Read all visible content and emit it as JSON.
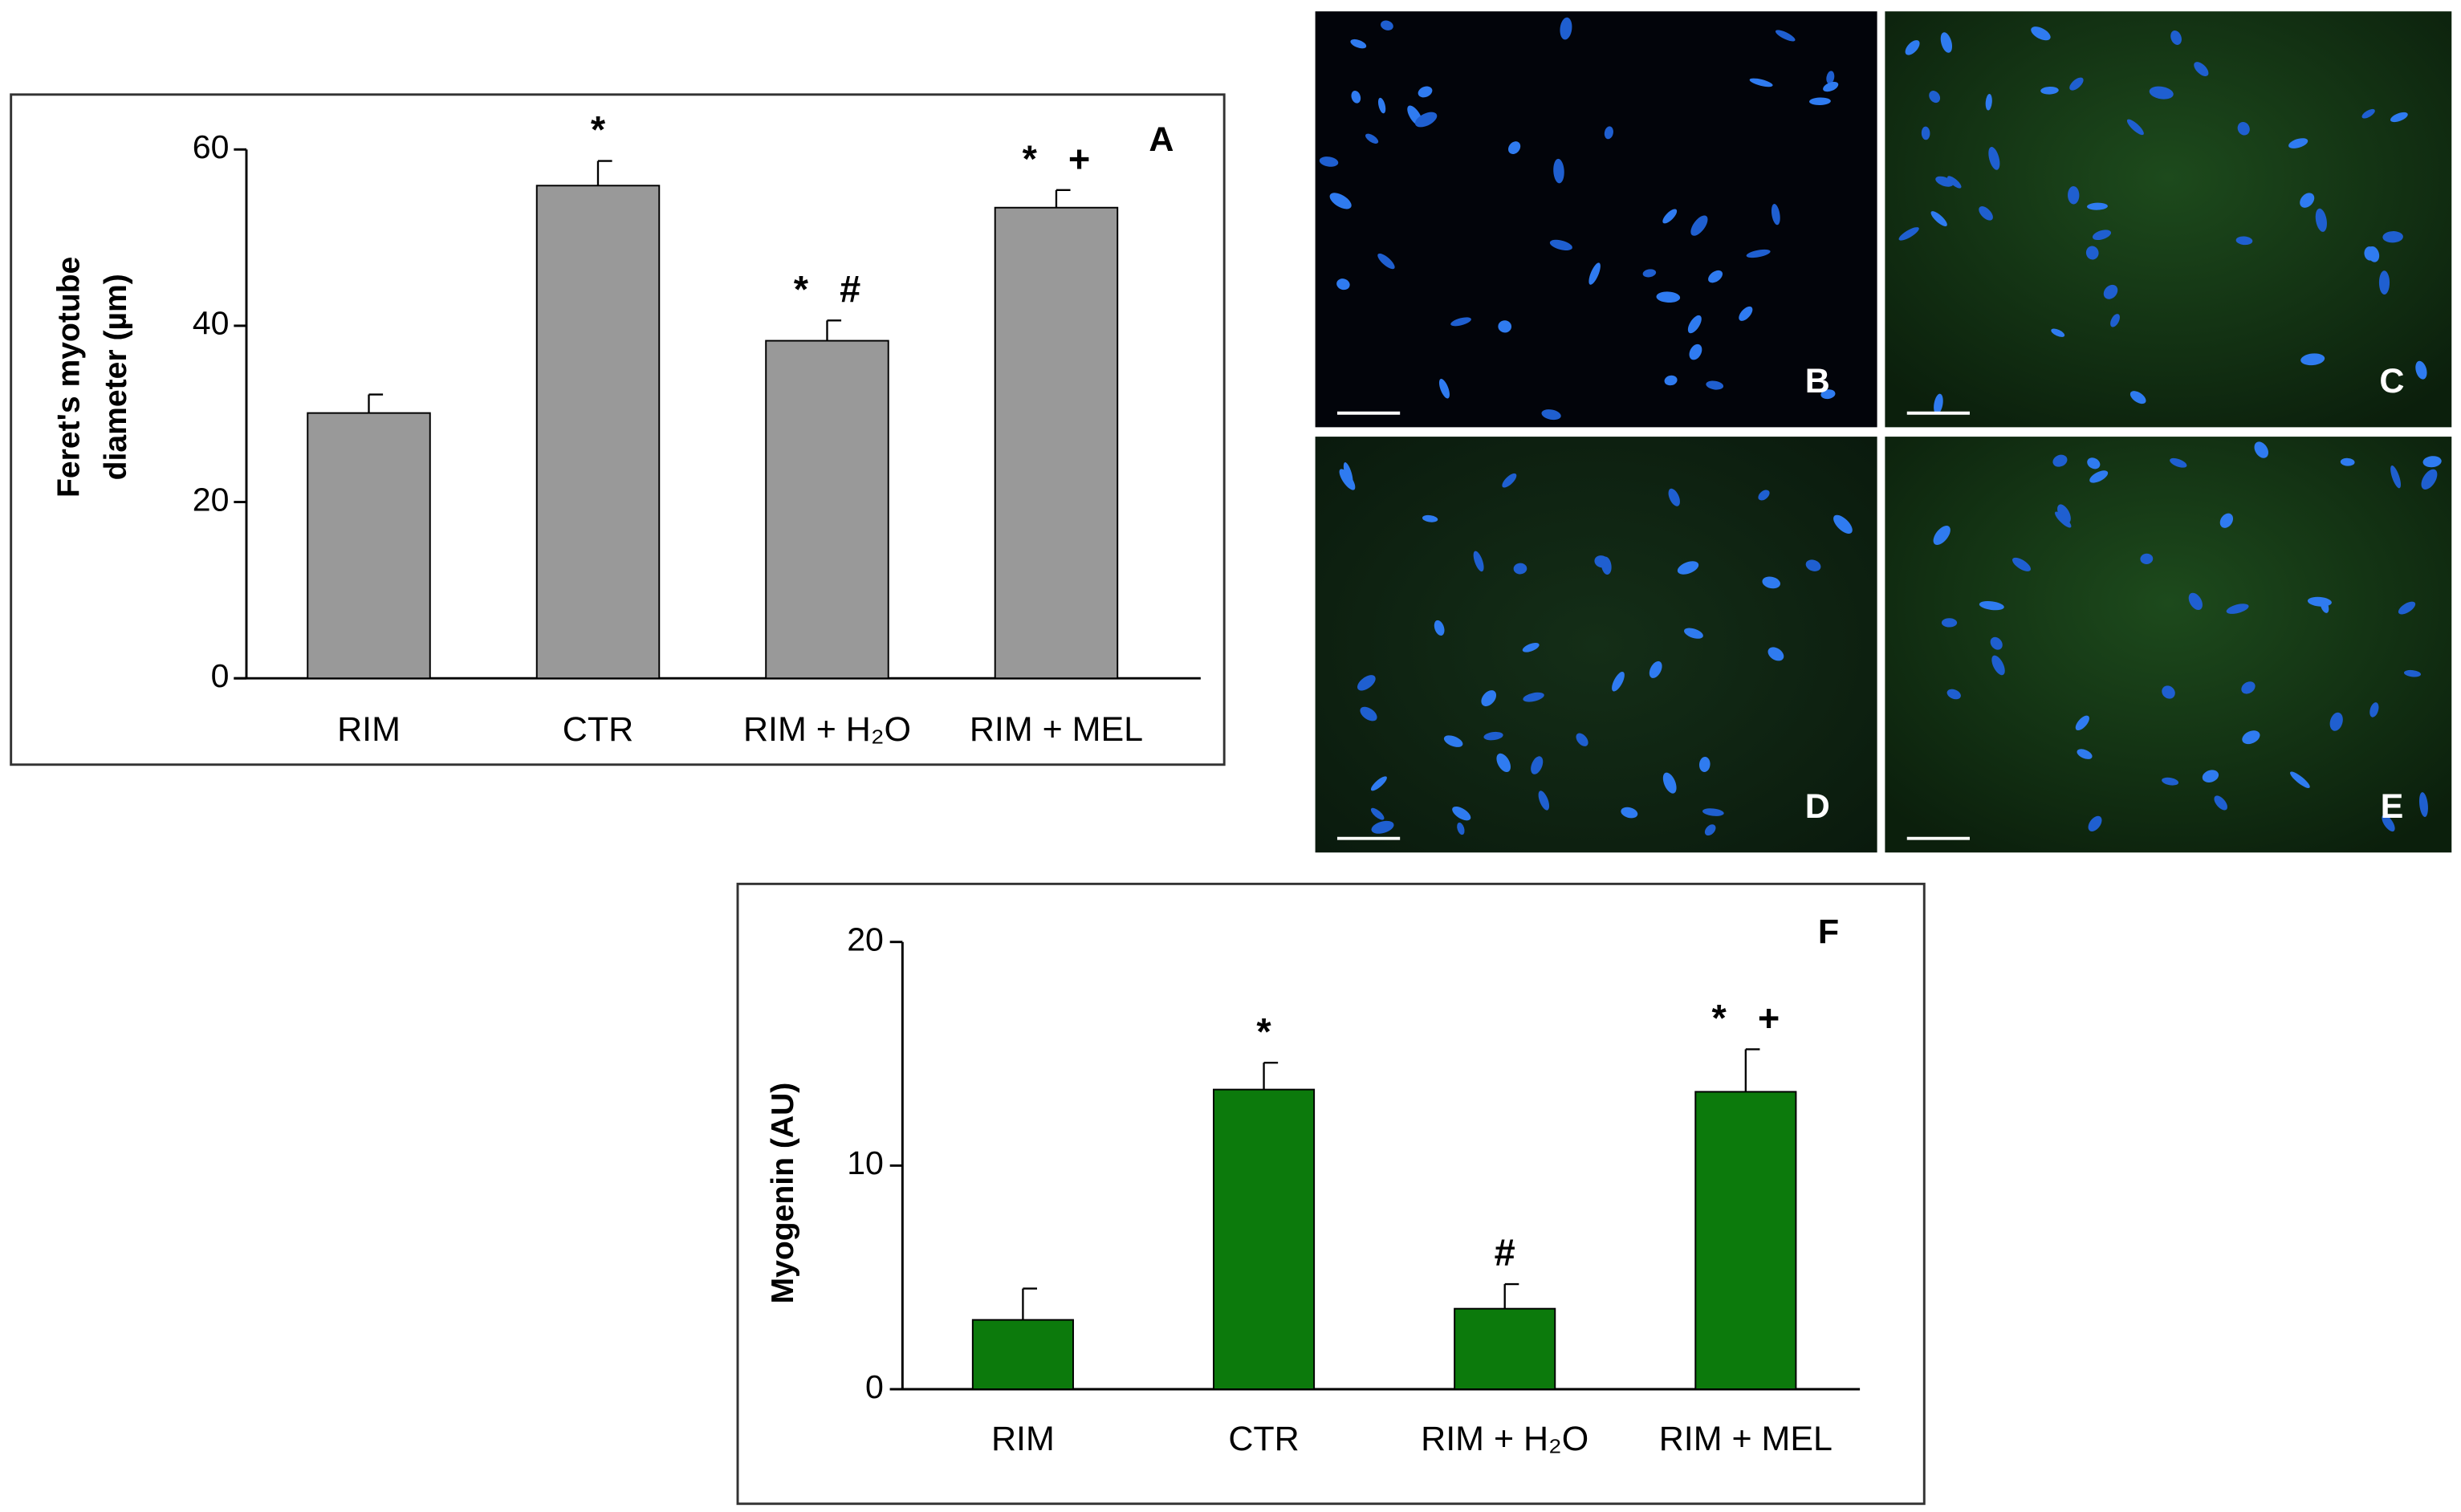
{
  "chart_data": [
    {
      "type": "bar",
      "panel": "A",
      "ylabel": [
        "Feret's myotube",
        "diameter (µm)"
      ],
      "categories": [
        "RIM",
        "CTR",
        "RIM + H₂O",
        "RIM + MEL"
      ],
      "values": [
        30.1,
        55.9,
        38.3,
        53.4
      ],
      "errors": [
        2.1,
        2.8,
        2.3,
        2.0
      ],
      "annotations": [
        null,
        "*",
        "*   #",
        "*   +"
      ],
      "color": "#999999",
      "ylim": [
        0,
        60
      ],
      "yticks": [
        0,
        20,
        40,
        60
      ]
    },
    {
      "type": "bar",
      "panel": "F",
      "ylabel": [
        "Myogenin (AU)"
      ],
      "categories": [
        "RIM",
        "CTR",
        "RIM + H₂O",
        "RIM + MEL"
      ],
      "values": [
        3.1,
        13.4,
        3.6,
        13.3
      ],
      "errors": [
        1.4,
        1.2,
        1.1,
        1.9
      ],
      "annotations": [
        null,
        "*",
        "#",
        "*   +"
      ],
      "color": "#0c7a0c",
      "ylim": [
        0,
        20
      ],
      "yticks": [
        0,
        10,
        20
      ]
    }
  ],
  "images": {
    "labels": [
      "B",
      "C",
      "D",
      "E"
    ]
  }
}
